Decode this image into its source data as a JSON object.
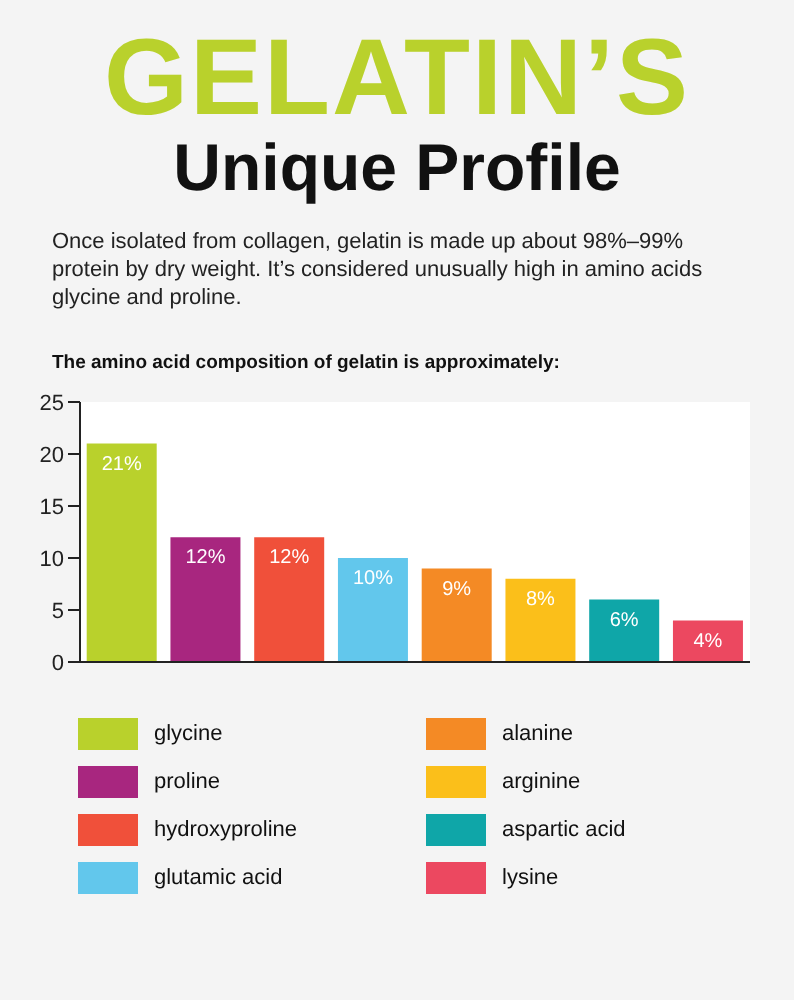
{
  "chart_data": {
    "type": "bar",
    "title": "GELATIN’S",
    "subtitle": "Unique Profile",
    "annotations": [
      "Once isolated from collagen, gelatin is made up about 98%–99% protein by dry weight. It’s considered unusually high in amino acids glycine and proline.",
      "The amino acid composition of gelatin is approximately:"
    ],
    "categories": [
      null,
      null,
      null,
      null,
      null,
      null,
      null,
      null
    ],
    "stacked": true,
    "series": [
      {
        "name": "glycine",
        "color": "#b9d12c",
        "values": [
          21,
          null,
          null,
          null,
          null,
          null,
          null,
          null
        ],
        "value_labels": [
          "21%",
          null,
          null,
          null,
          null,
          null,
          null,
          null
        ]
      },
      {
        "name": "proline",
        "color": "#a8267f",
        "values": [
          null,
          12,
          null,
          null,
          null,
          null,
          null,
          null
        ],
        "value_labels": [
          null,
          "12%",
          null,
          null,
          null,
          null,
          null,
          null
        ]
      },
      {
        "name": "hydroxyproline",
        "color": "#f0503a",
        "values": [
          null,
          null,
          12,
          null,
          null,
          null,
          null,
          null
        ],
        "value_labels": [
          null,
          null,
          "12%",
          null,
          null,
          null,
          null,
          null
        ]
      },
      {
        "name": "glutamic acid",
        "color": "#62c7ec",
        "values": [
          null,
          null,
          null,
          10,
          null,
          null,
          null,
          null
        ],
        "value_labels": [
          null,
          null,
          null,
          "10%",
          null,
          null,
          null,
          null
        ]
      },
      {
        "name": "alanine",
        "color": "#f48a25",
        "values": [
          null,
          null,
          null,
          null,
          9,
          null,
          null,
          null
        ],
        "value_labels": [
          null,
          null,
          null,
          null,
          "9%",
          null,
          null,
          null
        ]
      },
      {
        "name": "arginine",
        "color": "#fbbf1a",
        "values": [
          null,
          null,
          null,
          null,
          null,
          8,
          null,
          null
        ],
        "value_labels": [
          null,
          null,
          null,
          null,
          null,
          "8%",
          null,
          null
        ]
      },
      {
        "name": "aspartic acid",
        "color": "#0fa6a8",
        "values": [
          null,
          null,
          null,
          null,
          null,
          null,
          6,
          null
        ],
        "value_labels": [
          null,
          null,
          null,
          null,
          null,
          null,
          "6%",
          null
        ]
      },
      {
        "name": "lysine",
        "color": "#ec4860",
        "values": [
          null,
          null,
          null,
          null,
          null,
          null,
          null,
          4
        ],
        "value_labels": [
          null,
          null,
          null,
          null,
          null,
          null,
          null,
          "4%"
        ]
      }
    ],
    "ylim": [
      0,
      25
    ],
    "yticks": [
      0,
      5,
      10,
      15,
      20,
      25
    ],
    "tick_labels": "y",
    "legend": "bottom"
  }
}
